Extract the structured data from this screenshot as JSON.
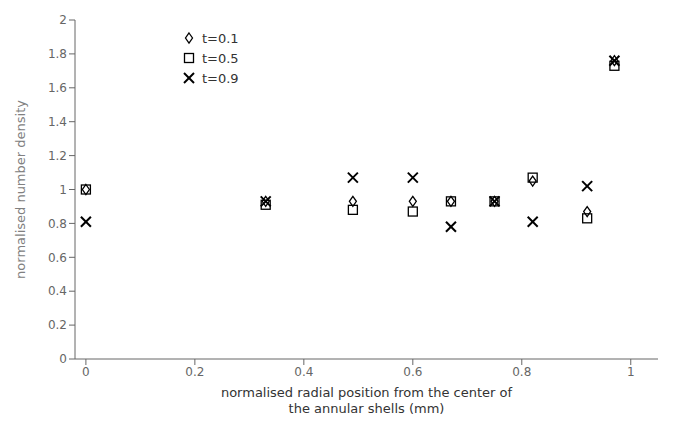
{
  "chart_data": {
    "type": "scatter",
    "x_label": "normalised radial position from the center of\nthe annular shells (mm)",
    "y_label": "normalised number density",
    "xlim": [
      -0.02,
      1.05
    ],
    "ylim": [
      0,
      2.0
    ],
    "xticks": [
      0,
      0.2,
      0.4,
      0.6,
      0.8,
      1
    ],
    "yticks": [
      0,
      0.2,
      0.4,
      0.6,
      0.8,
      1,
      1.2,
      1.4,
      1.6,
      1.8,
      2
    ],
    "x": [
      0.0,
      0.33,
      0.49,
      0.6,
      0.67,
      0.75,
      0.82,
      0.92,
      0.97
    ],
    "series": [
      {
        "name": "t=0.1",
        "marker": "diamond",
        "values": [
          1.0,
          0.93,
          0.93,
          0.93,
          0.93,
          0.93,
          1.05,
          0.87,
          1.76
        ]
      },
      {
        "name": "t=0.5",
        "marker": "square",
        "values": [
          1.0,
          0.91,
          0.88,
          0.87,
          0.93,
          0.93,
          1.07,
          0.83,
          1.73
        ]
      },
      {
        "name": "t=0.9",
        "marker": "x",
        "values": [
          0.81,
          0.93,
          1.07,
          1.07,
          0.78,
          0.93,
          0.81,
          1.02,
          1.76
        ]
      }
    ],
    "color": "black",
    "grid": false,
    "legend": "upper left"
  }
}
